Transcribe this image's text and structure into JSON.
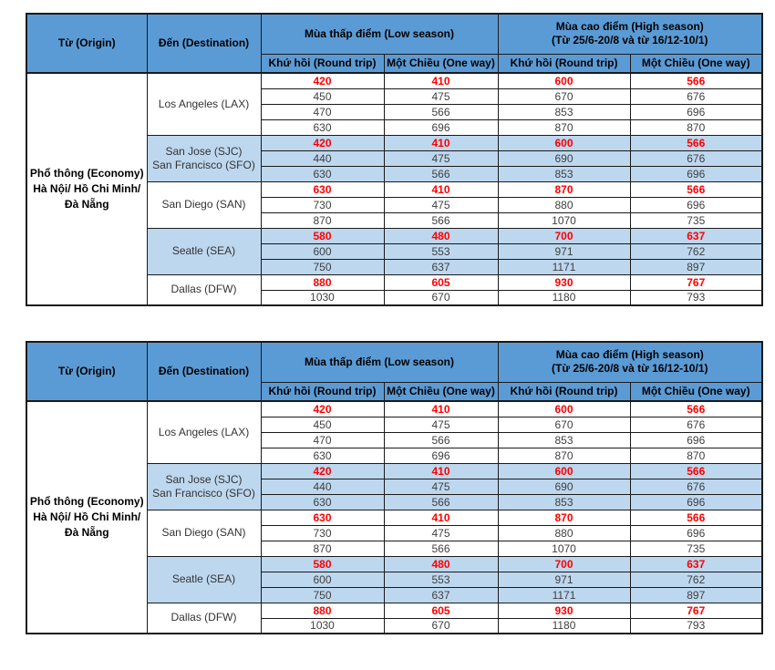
{
  "colors": {
    "header_bg": "#5b9bd5",
    "band_bg": "#bdd7ee",
    "highlight_text": "#ff0000",
    "body_text": "#3f3f3f"
  },
  "table": {
    "header": {
      "origin": "Từ (Origin)",
      "destination": "Đến (Destination)",
      "low_season": "Mùa thấp điểm (Low season)",
      "high_season_line1": "Mùa cao điểm (High season)",
      "high_season_line2": "(Từ 25/6-20/8 và từ 16/12-10/1)",
      "round_trip": "Khứ hồi (Round trip)",
      "one_way": "Một Chiều (One way)"
    },
    "origin_lines": [
      "Phổ thông (Economy)",
      "Hà Nội/ Hồ Chi Minh/",
      "Đà Nẵng"
    ],
    "groups": [
      {
        "destination_lines": [
          "Los Angeles (LAX)"
        ],
        "shaded": false,
        "rows": [
          {
            "highlight": true,
            "values": [
              420,
              410,
              600,
              566
            ]
          },
          {
            "highlight": false,
            "values": [
              450,
              475,
              670,
              676
            ]
          },
          {
            "highlight": false,
            "values": [
              470,
              566,
              853,
              696
            ]
          },
          {
            "highlight": false,
            "values": [
              630,
              696,
              870,
              870
            ]
          }
        ]
      },
      {
        "destination_lines": [
          "San Jose (SJC)",
          "San Francisco (SFO)"
        ],
        "shaded": true,
        "rows": [
          {
            "highlight": true,
            "values": [
              420,
              410,
              600,
              566
            ]
          },
          {
            "highlight": false,
            "values": [
              440,
              475,
              690,
              676
            ]
          },
          {
            "highlight": false,
            "values": [
              630,
              566,
              853,
              696
            ]
          }
        ]
      },
      {
        "destination_lines": [
          "San Diego (SAN)"
        ],
        "shaded": false,
        "rows": [
          {
            "highlight": true,
            "values": [
              630,
              410,
              870,
              566
            ]
          },
          {
            "highlight": false,
            "values": [
              730,
              475,
              880,
              696
            ]
          },
          {
            "highlight": false,
            "values": [
              870,
              566,
              1070,
              735
            ]
          }
        ]
      },
      {
        "destination_lines": [
          "Seatle (SEA)"
        ],
        "shaded": true,
        "rows": [
          {
            "highlight": true,
            "values": [
              580,
              480,
              700,
              637
            ]
          },
          {
            "highlight": false,
            "values": [
              600,
              553,
              971,
              762
            ]
          },
          {
            "highlight": false,
            "values": [
              750,
              637,
              1171,
              897
            ]
          }
        ]
      },
      {
        "destination_lines": [
          "Dallas (DFW)"
        ],
        "shaded": false,
        "rows": [
          {
            "highlight": true,
            "values": [
              880,
              605,
              930,
              767
            ]
          },
          {
            "highlight": false,
            "values": [
              1030,
              670,
              1180,
              793
            ]
          }
        ]
      }
    ]
  }
}
